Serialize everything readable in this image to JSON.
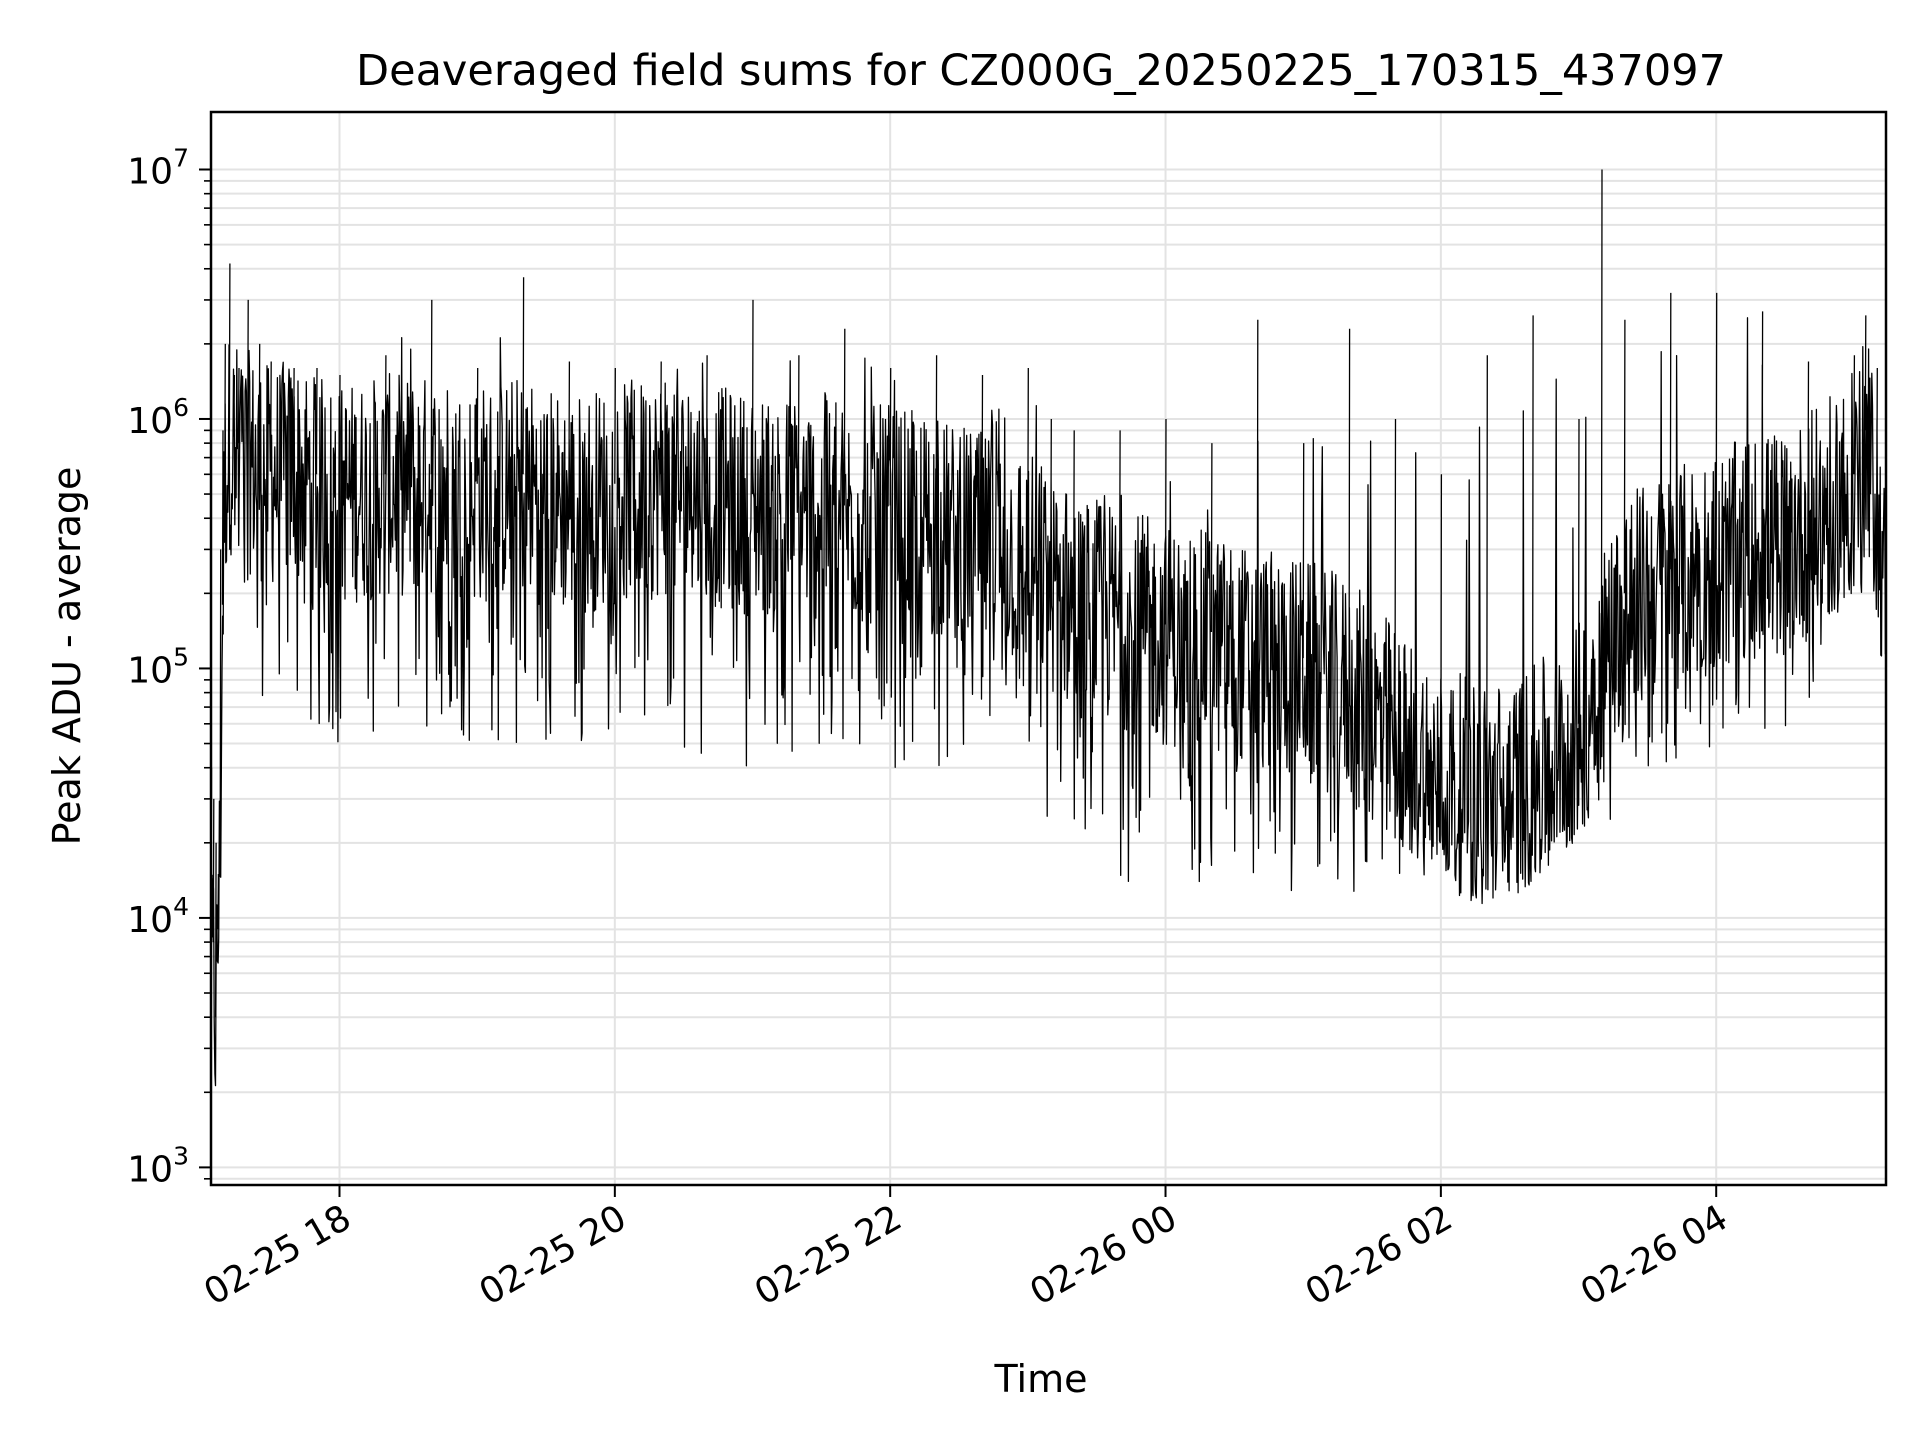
{
  "chart_data": {
    "type": "line",
    "title": "Deaveraged field sums for CZ000G_20250225_170315_437097",
    "xlabel": "Time",
    "ylabel": "Peak ADU - average",
    "xlim": [
      "2025-02-25 17:04",
      "2025-02-26 05:14"
    ],
    "ylim": [
      850,
      17000000
    ],
    "yscale": "log",
    "grid": true,
    "legend": "none",
    "line_color": "#000000",
    "x_ticks": [
      {
        "value": "2025-02-25 18:00",
        "label": "02-25 18"
      },
      {
        "value": "2025-02-25 20:00",
        "label": "02-25 20"
      },
      {
        "value": "2025-02-25 22:00",
        "label": "02-25 22"
      },
      {
        "value": "2025-02-26 00:00",
        "label": "02-26 00"
      },
      {
        "value": "2025-02-26 02:00",
        "label": "02-26 02"
      },
      {
        "value": "2025-02-26 04:00",
        "label": "02-26 04"
      }
    ],
    "y_ticks": [
      {
        "value": 1000,
        "base": "10",
        "exp": "3"
      },
      {
        "value": 10000,
        "base": "10",
        "exp": "4"
      },
      {
        "value": 100000,
        "base": "10",
        "exp": "5"
      },
      {
        "value": 1000000,
        "base": "10",
        "exp": "6"
      },
      {
        "value": 10000000,
        "base": "10",
        "exp": "7"
      }
    ],
    "series": [
      {
        "x": [
          "2025-02-25 17:04",
          "2025-02-25 17:05",
          "2025-02-25 17:06",
          "2025-02-25 17:07",
          "2025-02-25 17:08",
          "2025-02-25 17:09",
          "2025-02-25 17:10",
          "2025-02-25 17:12",
          "2025-02-25 17:14",
          "2025-02-25 17:16",
          "2025-02-25 17:20",
          "2025-02-25 17:25",
          "2025-02-25 17:30",
          "2025-02-25 17:40",
          "2025-02-25 17:50",
          "2025-02-25 18:00",
          "2025-02-25 18:20",
          "2025-02-25 18:40",
          "2025-02-25 19:00",
          "2025-02-25 19:20",
          "2025-02-25 19:40",
          "2025-02-25 20:00",
          "2025-02-25 20:20",
          "2025-02-25 20:40",
          "2025-02-25 21:00",
          "2025-02-25 21:20",
          "2025-02-25 21:40",
          "2025-02-25 22:00",
          "2025-02-25 22:20",
          "2025-02-25 22:40",
          "2025-02-25 23:00",
          "2025-02-25 23:10",
          "2025-02-25 23:20",
          "2025-02-25 23:40",
          "2025-02-26 00:00",
          "2025-02-26 00:20",
          "2025-02-26 00:40",
          "2025-02-26 01:00",
          "2025-02-26 01:20",
          "2025-02-26 01:40",
          "2025-02-26 02:00",
          "2025-02-26 02:20",
          "2025-02-26 02:40",
          "2025-02-26 03:00",
          "2025-02-26 03:10",
          "2025-02-26 03:20",
          "2025-02-26 03:40",
          "2025-02-26 04:00",
          "2025-02-26 04:20",
          "2025-02-26 04:40",
          "2025-02-26 05:00",
          "2025-02-26 05:05",
          "2025-02-26 05:10",
          "2025-02-26 05:14"
        ],
        "y_typical": [
          5000,
          8000,
          4000,
          9000,
          20000,
          180000,
          600000,
          900000,
          850000,
          800000,
          750000,
          700000,
          650000,
          700000,
          600000,
          550000,
          600000,
          600000,
          550000,
          600000,
          500000,
          550000,
          600000,
          550000,
          500000,
          500000,
          450000,
          450000,
          400000,
          350000,
          300000,
          250000,
          200000,
          180000,
          150000,
          140000,
          120000,
          110000,
          90000,
          60000,
          40000,
          35000,
          40000,
          60000,
          120000,
          200000,
          250000,
          300000,
          350000,
          400000,
          600000,
          900000,
          500000,
          200000
        ],
        "y_low": [
          1300,
          3500,
          4500,
          7000,
          10000,
          120000,
          500000,
          400000,
          300000,
          200000,
          180000,
          70000,
          60000,
          55000,
          50000,
          48000,
          47000,
          50000,
          50000,
          48000,
          45000,
          55000,
          50000,
          45000,
          40000,
          42000,
          45000,
          40000,
          40000,
          45000,
          35000,
          20000,
          18000,
          13000,
          13000,
          14000,
          13000,
          12000,
          12000,
          14000,
          15000,
          10000,
          14000,
          15000,
          20000,
          35000,
          40000,
          50000,
          55000,
          60000,
          150000,
          200000,
          300000,
          150000
        ],
        "y_high": [
          40000,
          30000,
          20000,
          15000,
          300000,
          900000,
          2000000,
          4200000,
          1500000,
          1600000,
          3000000,
          2000000,
          1700000,
          1600000,
          1600000,
          1500000,
          1800000,
          3000000,
          1600000,
          3700000,
          1700000,
          1600000,
          1700000,
          1800000,
          3000000,
          1800000,
          2300000,
          1600000,
          1800000,
          1500000,
          1600000,
          1000000,
          900000,
          900000,
          1000000,
          800000,
          2500000,
          800000,
          2300000,
          1000000,
          600000,
          1800000,
          2600000,
          1000000,
          10000000,
          2500000,
          3200000,
          3200000,
          2700000,
          1700000,
          1800000,
          2600000,
          1600000,
          500000
        ]
      }
    ]
  }
}
